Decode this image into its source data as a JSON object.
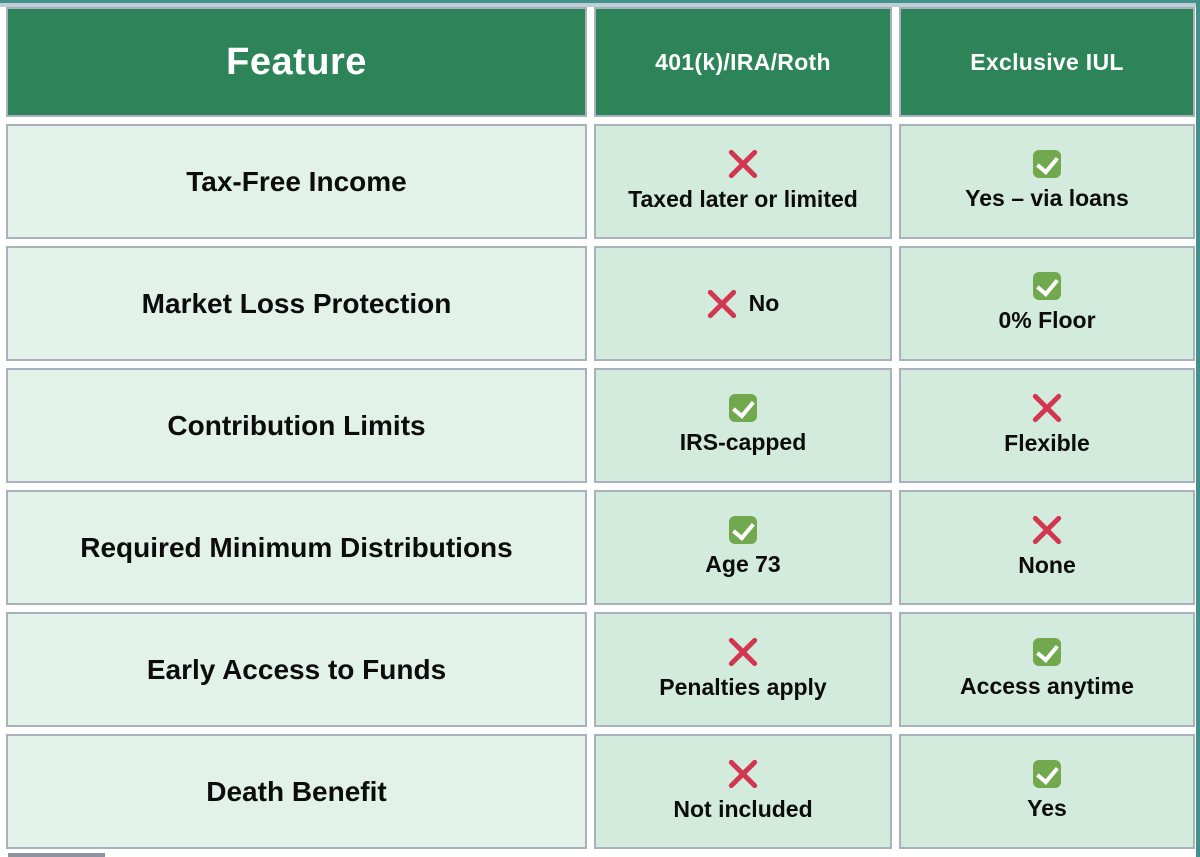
{
  "header": {
    "feature": "Feature",
    "col1": "401(k)/IRA/Roth",
    "col2": "Exclusive IUL"
  },
  "rows": [
    {
      "feature": "Tax-Free Income",
      "c1": {
        "icon": "cross",
        "text": "Taxed later or limited"
      },
      "c2": {
        "icon": "check",
        "text": "Yes – via loans"
      }
    },
    {
      "feature": "Market Loss Protection",
      "c1": {
        "icon": "cross",
        "text": "No"
      },
      "c2": {
        "icon": "check",
        "text": "0% Floor"
      }
    },
    {
      "feature": "Contribution Limits",
      "c1": {
        "icon": "check",
        "text": "IRS-capped"
      },
      "c2": {
        "icon": "cross",
        "text": "Flexible"
      }
    },
    {
      "feature": "Required Minimum Distributions",
      "c1": {
        "icon": "check",
        "text": "Age 73"
      },
      "c2": {
        "icon": "cross",
        "text": "None"
      }
    },
    {
      "feature": "Early Access to Funds",
      "c1": {
        "icon": "cross",
        "text": "Penalties apply"
      },
      "c2": {
        "icon": "check",
        "text": "Access anytime"
      }
    },
    {
      "feature": "Death Benefit",
      "c1": {
        "icon": "cross",
        "text": "Not included"
      },
      "c2": {
        "icon": "check",
        "text": "Yes"
      }
    }
  ],
  "colors": {
    "header_bg": "#2d8459",
    "feature_cell_bg": "#e3f2e9",
    "data_cell_bg": "#d3ebdd",
    "border": "#a9b1bf",
    "check_green": "#72a94e",
    "cross_red": "#d23750",
    "edge_teal": "#44908a",
    "edge_strip": "#bccfd7"
  },
  "chart_data": {
    "type": "table",
    "title": "401(k)/IRA/Roth vs Exclusive IUL comparison",
    "columns": [
      "Feature",
      "401(k)/IRA/Roth",
      "Exclusive IUL"
    ],
    "rows": [
      [
        "Tax-Free Income",
        "no: Taxed later or limited",
        "yes: Yes – via loans"
      ],
      [
        "Market Loss Protection",
        "no: No",
        "yes: 0% Floor"
      ],
      [
        "Contribution Limits",
        "yes: IRS-capped",
        "no: Flexible"
      ],
      [
        "Required Minimum Distributions",
        "yes: Age 73",
        "no: None"
      ],
      [
        "Early Access to Funds",
        "no: Penalties apply",
        "yes: Access anytime"
      ],
      [
        "Death Benefit",
        "no: Not included",
        "yes: Yes"
      ]
    ]
  }
}
